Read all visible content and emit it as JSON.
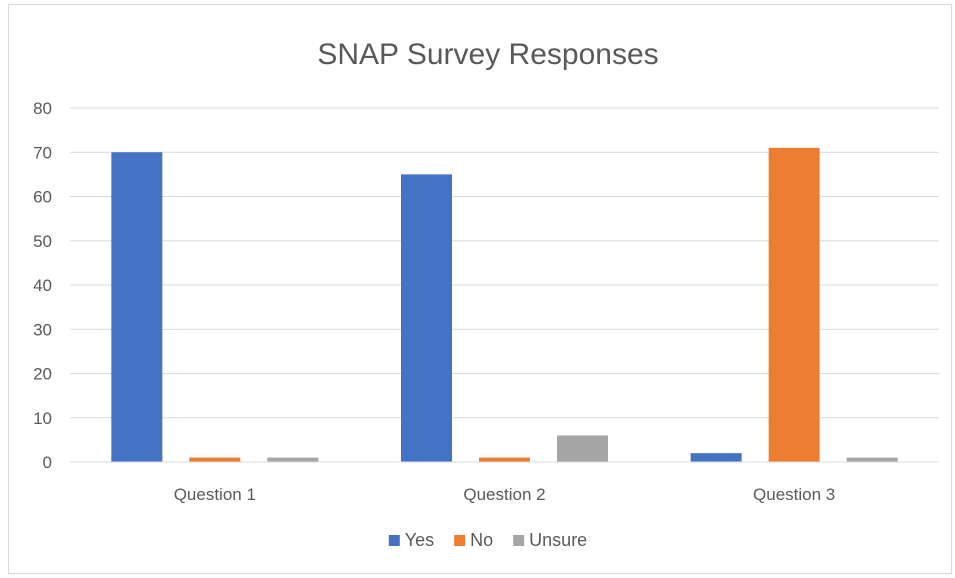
{
  "chart_data": {
    "type": "bar",
    "title": "SNAP Survey Responses",
    "categories": [
      "Question 1",
      "Question 2",
      "Question 3"
    ],
    "series": [
      {
        "name": "Yes",
        "values": [
          70,
          65,
          2
        ],
        "color": "#4472c4"
      },
      {
        "name": "No",
        "values": [
          1,
          1,
          71
        ],
        "color": "#ed7d31"
      },
      {
        "name": "Unsure",
        "values": [
          1,
          6,
          1
        ],
        "color": "#a5a5a5"
      }
    ],
    "ylim": [
      0,
      80
    ],
    "yticks": [
      0,
      10,
      20,
      30,
      40,
      50,
      60,
      70,
      80
    ],
    "grid": true,
    "legend_position": "bottom",
    "gridline_color": "#d9d9d9"
  }
}
